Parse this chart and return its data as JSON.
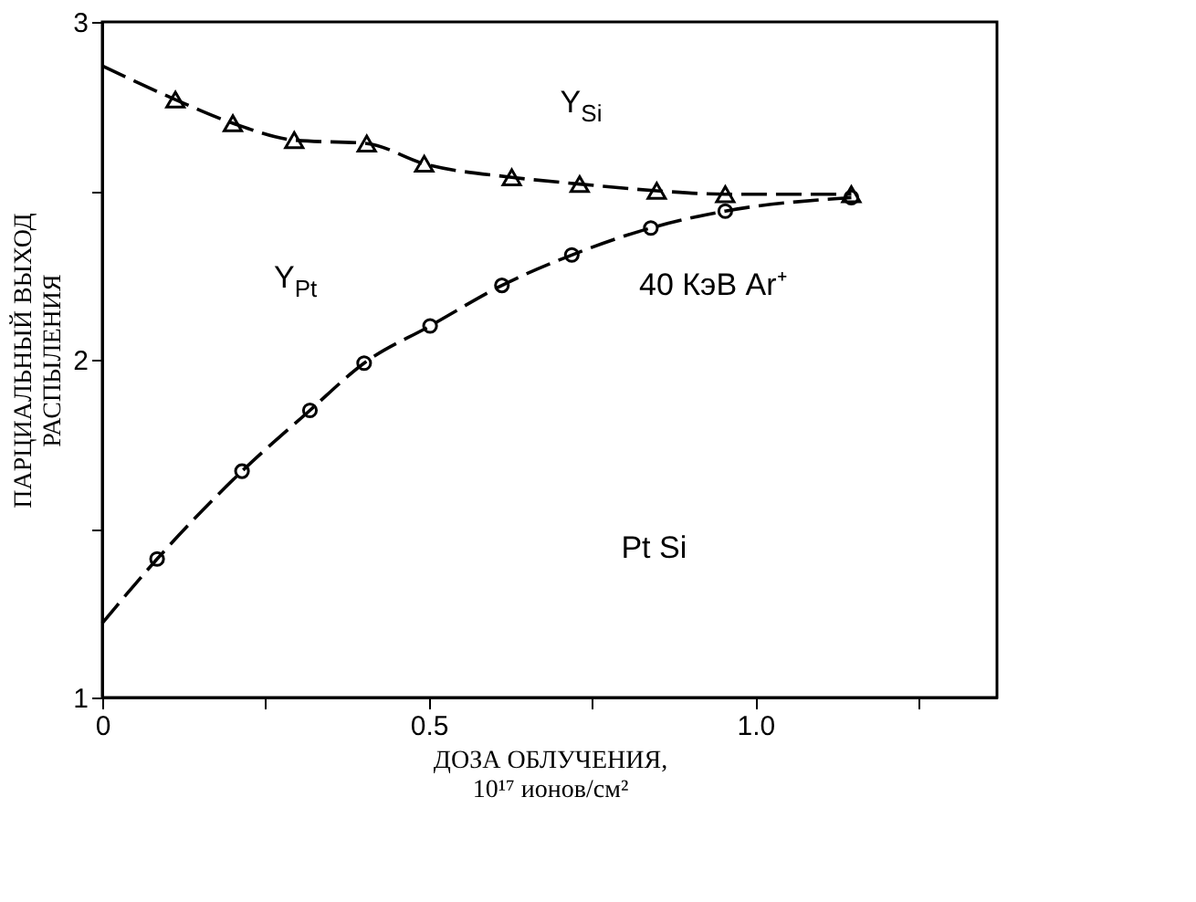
{
  "chart_data": {
    "type": "line",
    "xlabel": "ДОЗА ОБЛУЧЕНИЯ,\n10¹⁷ ионов/см²",
    "ylabel": "ПАРЦИАЛЬНЫЙ ВЫХОД\nРАСПЫЛЕНИЯ",
    "xlim": [
      0,
      1.37
    ],
    "xticks": [
      0,
      {
        "value": 0.25,
        "label": null
      },
      0.5,
      {
        "value": 0.75,
        "label": null
      },
      {
        "value": 1.0,
        "label": "1.0"
      },
      {
        "value": 1.25,
        "label": null
      }
    ],
    "ylim": [
      1,
      3
    ],
    "yticks": [
      1,
      {
        "value": 1.5,
        "label": null
      },
      2,
      {
        "value": 2.5,
        "label": null
      },
      3
    ],
    "grid": false,
    "series": [
      {
        "type": "line",
        "color": "#000000",
        "line_style": "dashed",
        "marker": "none",
        "x": [
          0,
          0.112,
          0.2,
          0.294,
          0.405,
          0.493,
          0.627,
          0.731,
          0.849,
          0.954,
          1.147
        ],
        "values": [
          2.87,
          2.77,
          2.7,
          2.65,
          2.64,
          2.58,
          2.54,
          2.52,
          2.5,
          2.49,
          2.49
        ]
      },
      {
        "type": "scatter",
        "color": "#000000",
        "marker": "triangle",
        "x": [
          0.112,
          0.2,
          0.294,
          0.405,
          0.493,
          0.627,
          0.731,
          0.849,
          0.954,
          1.147
        ],
        "values": [
          2.77,
          2.7,
          2.65,
          2.64,
          2.58,
          2.54,
          2.52,
          2.5,
          2.49,
          2.49
        ]
      },
      {
        "type": "line",
        "color": "#000000",
        "line_style": "dashed",
        "marker": "none",
        "x": [
          0,
          0.084,
          0.214,
          0.318,
          0.401,
          0.502,
          0.612,
          0.719,
          0.84,
          0.954,
          1.147
        ],
        "values": [
          1.22,
          1.41,
          1.67,
          1.85,
          1.99,
          2.1,
          2.22,
          2.31,
          2.39,
          2.44,
          2.48
        ]
      },
      {
        "type": "scatter",
        "color": "#000000",
        "marker": "circle",
        "x": [
          0.084,
          0.214,
          0.318,
          0.401,
          0.502,
          0.612,
          0.719,
          0.84,
          0.954,
          1.147
        ],
        "values": [
          1.41,
          1.67,
          1.85,
          1.99,
          2.1,
          2.22,
          2.31,
          2.39,
          2.44,
          2.48
        ]
      }
    ],
    "annotations": [
      "Y$_{Si}$",
      "Y$_{Pt}$",
      "40 КэВ Ar⁺",
      "Pt Si"
    ]
  }
}
